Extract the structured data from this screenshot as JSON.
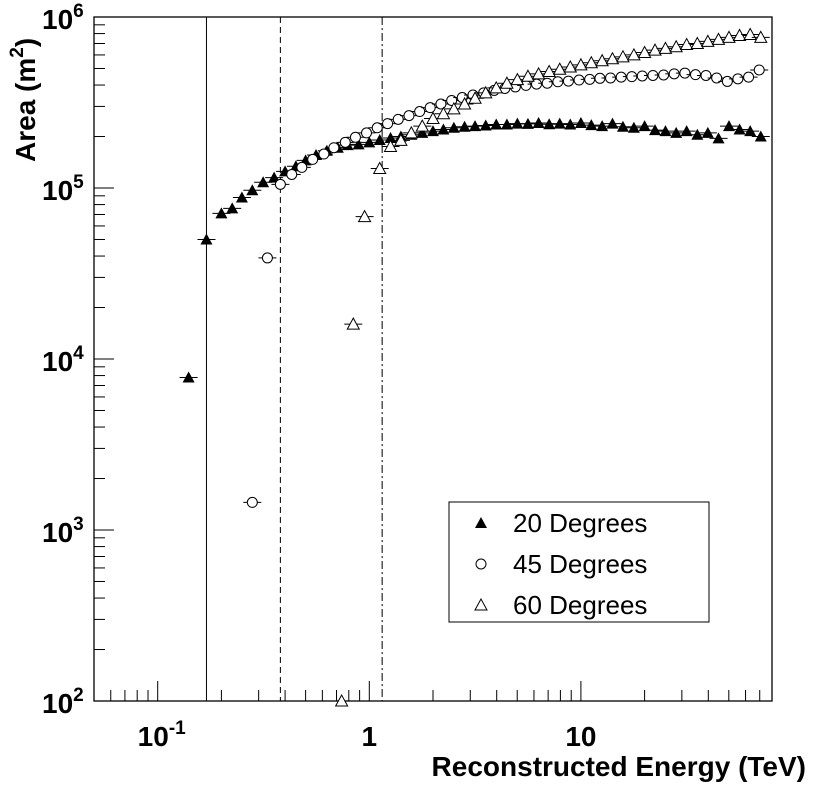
{
  "chart_data": {
    "type": "scatter",
    "x_scale": "log",
    "y_scale": "log",
    "xlim": [
      0.05,
      80
    ],
    "ylim": [
      100,
      1000000
    ],
    "xlabel": "Reconstructed Energy (TeV)",
    "ylabel_main": "Area (m",
    "ylabel_sup": "2",
    "ylabel_close": ")",
    "x_ticks": [
      {
        "value": 0.1,
        "base": "10",
        "exp": "-1"
      },
      {
        "value": 1,
        "base": "1",
        "exp": ""
      },
      {
        "value": 10,
        "base": "10",
        "exp": ""
      }
    ],
    "y_ticks": [
      {
        "value": 100,
        "base": "10",
        "exp": "2"
      },
      {
        "value": 1000,
        "base": "10",
        "exp": "3"
      },
      {
        "value": 10000,
        "base": "10",
        "exp": "4"
      },
      {
        "value": 100000,
        "base": "10",
        "exp": "5"
      },
      {
        "value": 1000000,
        "base": "10",
        "exp": "6"
      }
    ],
    "threshold_lines": [
      {
        "x": 0.17,
        "style": "solid"
      },
      {
        "x": 0.38,
        "style": "dashed"
      },
      {
        "x": 1.15,
        "style": "dashdot"
      }
    ],
    "legend_position": "bottom-right",
    "series": [
      {
        "name": "20 Degrees",
        "marker": "filled-triangle",
        "points": [
          [
            0.14,
            7800
          ],
          [
            0.17,
            50000
          ],
          [
            0.2,
            71000
          ],
          [
            0.225,
            76000
          ],
          [
            0.25,
            88000
          ],
          [
            0.28,
            97000
          ],
          [
            0.315,
            108000
          ],
          [
            0.355,
            115000
          ],
          [
            0.4,
            125000
          ],
          [
            0.45,
            134000
          ],
          [
            0.5,
            145000
          ],
          [
            0.56,
            156000
          ],
          [
            0.63,
            165000
          ],
          [
            0.71,
            172000
          ],
          [
            0.79,
            178000
          ],
          [
            0.89,
            180000
          ],
          [
            1.0,
            185000
          ],
          [
            1.12,
            191000
          ],
          [
            1.26,
            196000
          ],
          [
            1.41,
            200000
          ],
          [
            1.58,
            205000
          ],
          [
            1.78,
            210000
          ],
          [
            2.0,
            215000
          ],
          [
            2.24,
            220000
          ],
          [
            2.51,
            225000
          ],
          [
            2.82,
            228000
          ],
          [
            3.16,
            230000
          ],
          [
            3.55,
            232000
          ],
          [
            3.98,
            235000
          ],
          [
            4.47,
            235000
          ],
          [
            5.01,
            238000
          ],
          [
            5.62,
            237000
          ],
          [
            6.31,
            240000
          ],
          [
            7.08,
            236000
          ],
          [
            7.94,
            238000
          ],
          [
            8.91,
            235000
          ],
          [
            10.0,
            240000
          ],
          [
            11.2,
            233000
          ],
          [
            12.6,
            230000
          ],
          [
            14.1,
            238000
          ],
          [
            15.8,
            228000
          ],
          [
            17.8,
            225000
          ],
          [
            20.0,
            230000
          ],
          [
            22.4,
            218000
          ],
          [
            25.1,
            215000
          ],
          [
            28.2,
            210000
          ],
          [
            31.6,
            215000
          ],
          [
            35.5,
            205000
          ],
          [
            39.8,
            210000
          ],
          [
            44.7,
            195000
          ],
          [
            50.1,
            230000
          ],
          [
            56.2,
            220000
          ],
          [
            63.1,
            215000
          ],
          [
            70.8,
            200000
          ]
        ]
      },
      {
        "name": "45 Degrees",
        "marker": "open-circle",
        "points": [
          [
            0.28,
            1450
          ],
          [
            0.33,
            39000
          ],
          [
            0.38,
            105000
          ],
          [
            0.43,
            120000
          ],
          [
            0.48,
            132000
          ],
          [
            0.54,
            147000
          ],
          [
            0.61,
            158000
          ],
          [
            0.68,
            172000
          ],
          [
            0.77,
            185000
          ],
          [
            0.86,
            198000
          ],
          [
            0.97,
            210000
          ],
          [
            1.09,
            225000
          ],
          [
            1.22,
            238000
          ],
          [
            1.37,
            252000
          ],
          [
            1.54,
            265000
          ],
          [
            1.73,
            280000
          ],
          [
            1.94,
            295000
          ],
          [
            2.18,
            310000
          ],
          [
            2.45,
            325000
          ],
          [
            2.75,
            338000
          ],
          [
            3.09,
            350000
          ],
          [
            3.47,
            360000
          ],
          [
            3.89,
            372000
          ],
          [
            4.37,
            382000
          ],
          [
            4.9,
            390000
          ],
          [
            5.5,
            398000
          ],
          [
            6.17,
            405000
          ],
          [
            6.93,
            410000
          ],
          [
            7.78,
            418000
          ],
          [
            8.73,
            422000
          ],
          [
            9.8,
            428000
          ],
          [
            11.0,
            432000
          ],
          [
            12.3,
            438000
          ],
          [
            13.8,
            440000
          ],
          [
            15.5,
            445000
          ],
          [
            17.4,
            448000
          ],
          [
            19.5,
            452000
          ],
          [
            21.9,
            455000
          ],
          [
            24.6,
            458000
          ],
          [
            27.6,
            465000
          ],
          [
            31.0,
            470000
          ],
          [
            34.8,
            460000
          ],
          [
            39.0,
            455000
          ],
          [
            43.8,
            440000
          ],
          [
            49.2,
            420000
          ],
          [
            55.2,
            435000
          ],
          [
            62.0,
            445000
          ],
          [
            69.6,
            490000
          ]
        ]
      },
      {
        "name": "60 Degrees",
        "marker": "open-triangle",
        "points": [
          [
            0.74,
            100
          ],
          [
            0.84,
            16000
          ],
          [
            0.95,
            68000
          ],
          [
            1.12,
            130000
          ],
          [
            1.26,
            175000
          ],
          [
            1.41,
            190000
          ],
          [
            1.58,
            210000
          ],
          [
            1.78,
            230000
          ],
          [
            2.0,
            255000
          ],
          [
            2.24,
            272000
          ],
          [
            2.51,
            290000
          ],
          [
            2.82,
            310000
          ],
          [
            3.16,
            335000
          ],
          [
            3.55,
            360000
          ],
          [
            3.98,
            385000
          ],
          [
            4.47,
            410000
          ],
          [
            5.01,
            430000
          ],
          [
            5.62,
            450000
          ],
          [
            6.31,
            465000
          ],
          [
            7.08,
            480000
          ],
          [
            7.94,
            495000
          ],
          [
            8.91,
            510000
          ],
          [
            10.0,
            525000
          ],
          [
            11.2,
            540000
          ],
          [
            12.6,
            555000
          ],
          [
            14.1,
            570000
          ],
          [
            15.8,
            585000
          ],
          [
            17.8,
            600000
          ],
          [
            20.0,
            620000
          ],
          [
            22.4,
            640000
          ],
          [
            25.1,
            655000
          ],
          [
            28.2,
            670000
          ],
          [
            31.6,
            690000
          ],
          [
            35.5,
            700000
          ],
          [
            39.8,
            720000
          ],
          [
            44.7,
            740000
          ],
          [
            50.1,
            760000
          ],
          [
            56.2,
            780000
          ],
          [
            63.1,
            790000
          ],
          [
            70.8,
            760000
          ]
        ]
      }
    ]
  }
}
